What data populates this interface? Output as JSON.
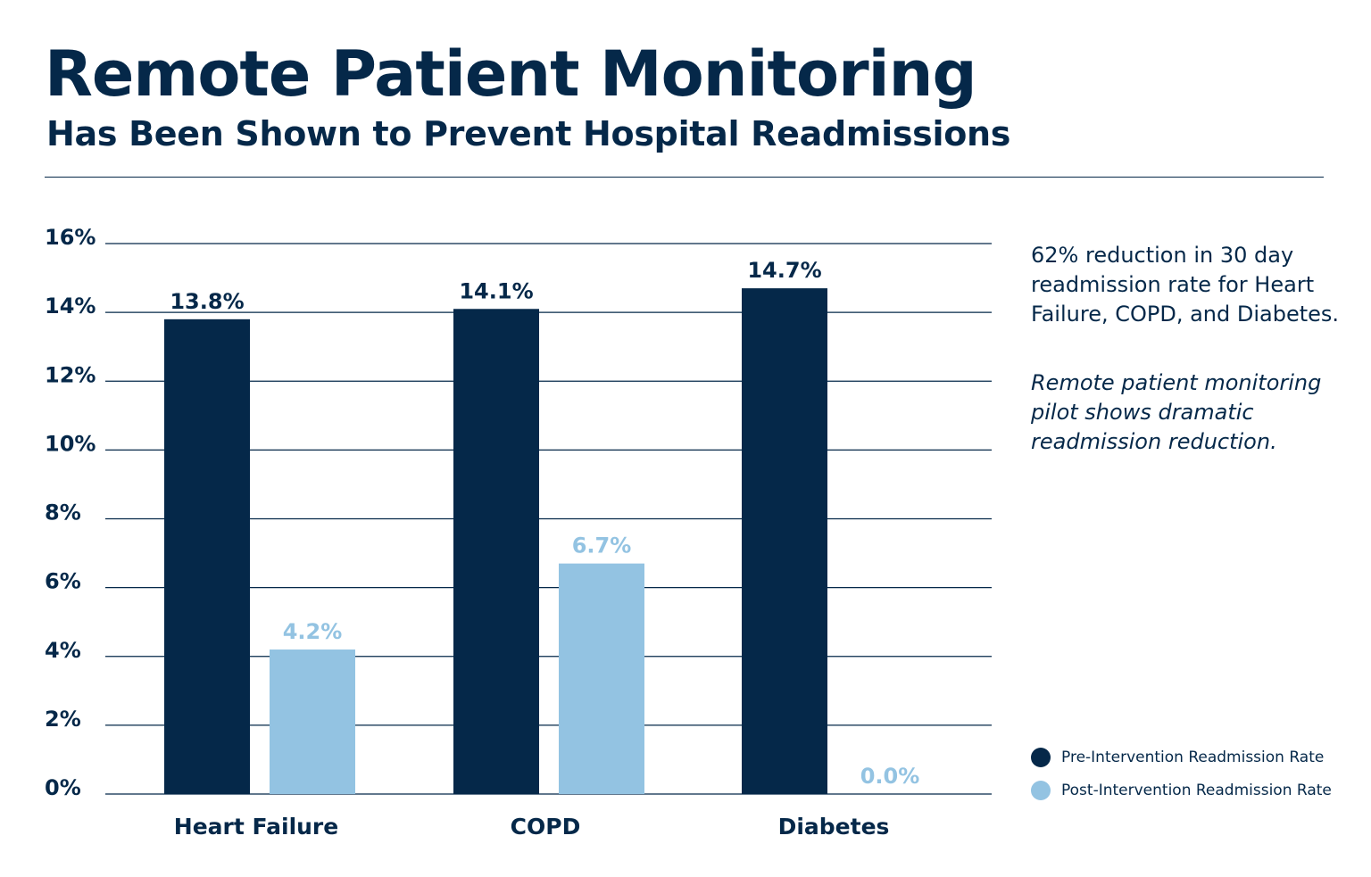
{
  "header": {
    "title": "Remote Patient Monitoring",
    "subtitle": "Has Been Shown to Prevent Hospital Readmissions"
  },
  "annotation": {
    "main": "62% reduction in 30 day readmission rate for Heart Failure, COPD, and Diabetes.",
    "sub": "Remote patient monitoring pilot shows dramatic readmission reduction."
  },
  "colors": {
    "pre": "#052849",
    "post": "#93c3e2",
    "grid": "#052849"
  },
  "chart_data": {
    "type": "bar",
    "categories": [
      "Heart Failure",
      "COPD",
      "Diabetes"
    ],
    "series": [
      {
        "name": "Pre-Intervention Readmission Rate",
        "values": [
          13.8,
          14.1,
          14.7
        ],
        "labels": [
          "13.8%",
          "14.1%",
          "14.7%"
        ]
      },
      {
        "name": "Post-Intervention Readmission Rate",
        "values": [
          4.2,
          6.7,
          0.0
        ],
        "labels": [
          "4.2%",
          "6.7%",
          "0.0%"
        ]
      }
    ],
    "ylim": [
      0,
      16
    ],
    "yticks": [
      "0%",
      "2%",
      "4%",
      "6%",
      "8%",
      "10%",
      "12%",
      "14%",
      "16%"
    ],
    "grid": true,
    "legend": "bottom-right"
  }
}
